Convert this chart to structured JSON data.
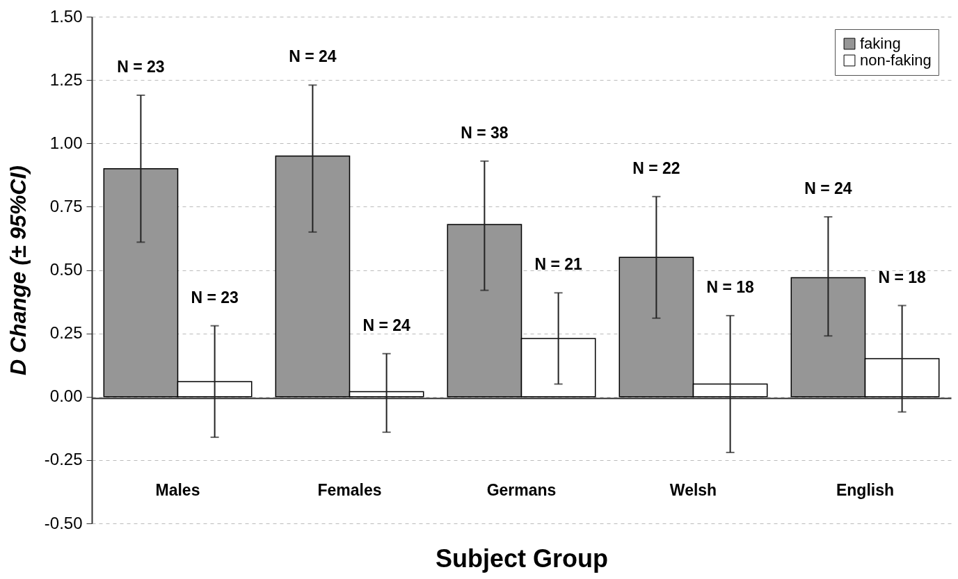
{
  "chart_data": {
    "type": "bar",
    "xlabel": "Subject Group",
    "ylabel": "D Change (± 95%CI)",
    "categories": [
      "Males",
      "Females",
      "Germans",
      "Welsh",
      "English"
    ],
    "series": [
      {
        "name": "faking",
        "color": "#969696",
        "values": [
          0.9,
          0.95,
          0.68,
          0.55,
          0.47
        ],
        "errors": [
          [
            0.61,
            1.19
          ],
          [
            0.65,
            1.23
          ],
          [
            0.42,
            0.93
          ],
          [
            0.31,
            0.79
          ],
          [
            0.24,
            0.71
          ]
        ]
      },
      {
        "name": "non-faking",
        "color": "#ffffff",
        "values": [
          0.06,
          0.02,
          0.23,
          0.05,
          0.15
        ],
        "errors": [
          [
            -0.16,
            0.28
          ],
          [
            -0.14,
            0.17
          ],
          [
            0.05,
            0.41
          ],
          [
            -0.22,
            0.32
          ],
          [
            -0.06,
            0.36
          ]
        ]
      }
    ],
    "annotations": [
      "N = 23",
      "N = 23",
      "N = 24",
      "N = 24",
      "N = 38",
      "N = 21",
      "N = 22",
      "N = 18",
      "N = 24",
      "N = 18"
    ],
    "ylim": [
      -0.5,
      1.5
    ],
    "yticks": [
      {
        "value": -0.5,
        "label": "-0.50"
      },
      {
        "value": -0.25,
        "label": "-0.25"
      },
      {
        "value": 0,
        "label": "0.00"
      },
      {
        "value": 0.25,
        "label": "0.25"
      },
      {
        "value": 0.5,
        "label": "0.50"
      },
      {
        "value": 0.75,
        "label": "0.75"
      },
      {
        "value": 1,
        "label": "1.00"
      },
      {
        "value": 1.25,
        "label": "1.25"
      },
      {
        "value": 1.5,
        "label": "1.50"
      }
    ],
    "grid": "y",
    "legend": "top right"
  }
}
